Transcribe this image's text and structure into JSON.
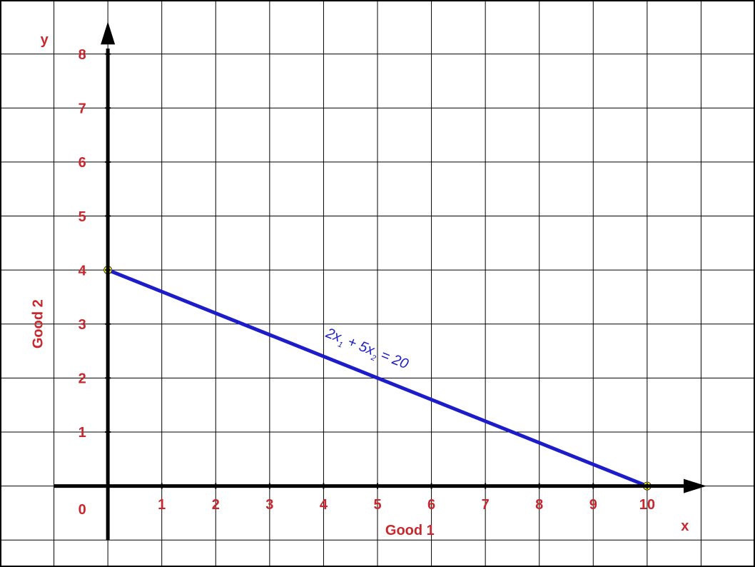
{
  "chart_data": {
    "type": "line",
    "x_axis_letter": "x",
    "y_axis_letter": "y",
    "xlabel": "Good 1",
    "ylabel": "Good 2",
    "origin_label": "0",
    "annotation_parts": [
      "2x",
      "1",
      " + 5x",
      "2",
      " = 20"
    ],
    "x": [
      0,
      10
    ],
    "series": [
      {
        "color": "#1c1cc8",
        "values": [
          4,
          0
        ]
      }
    ],
    "marker_color": "#ffff00",
    "xlim": [
      -2,
      12
    ],
    "ylim": [
      -1.5,
      9
    ],
    "xticks": [
      1,
      2,
      3,
      4,
      5,
      6,
      7,
      8,
      9,
      10
    ],
    "yticks": [
      1,
      2,
      3,
      4,
      5,
      6,
      7,
      8
    ],
    "grid": true
  }
}
